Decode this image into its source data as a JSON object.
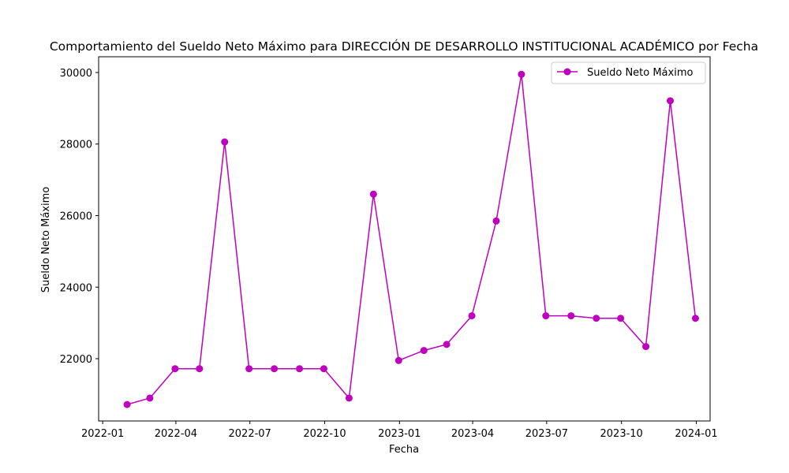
{
  "chart_data": {
    "type": "line",
    "title": "Comportamiento del Sueldo Neto Máximo para DIRECCIÓN DE DESARROLLO INSTITUCIONAL ACADÉMICO por Fecha",
    "xlabel": "Fecha",
    "ylabel": "Sueldo Neto Máximo",
    "x_axis_type": "date",
    "xlim": [
      "2021-12-27",
      "2024-01-18"
    ],
    "ylim": [
      20260,
      30440
    ],
    "xticks": [
      "2022-01-01",
      "2022-04-01",
      "2022-07-01",
      "2022-10-01",
      "2023-01-01",
      "2023-04-01",
      "2023-07-01",
      "2023-10-01",
      "2024-01-01"
    ],
    "xtick_labels": [
      "2022-01",
      "2022-04",
      "2022-07",
      "2022-10",
      "2023-01",
      "2023-04",
      "2023-07",
      "2023-10",
      "2024-01"
    ],
    "yticks": [
      22000,
      24000,
      26000,
      28000,
      30000
    ],
    "ytick_labels": [
      "22000",
      "24000",
      "26000",
      "28000",
      "30000"
    ],
    "grid": false,
    "legend_position": "top-right",
    "series": [
      {
        "name": "Sueldo Neto Máximo",
        "color": "#bf00bf",
        "marker": "circle",
        "x": [
          "2022-01-31",
          "2022-02-28",
          "2022-03-31",
          "2022-04-30",
          "2022-05-31",
          "2022-06-30",
          "2022-07-31",
          "2022-08-31",
          "2022-09-30",
          "2022-10-31",
          "2022-11-30",
          "2022-12-31",
          "2023-01-31",
          "2023-02-28",
          "2023-03-31",
          "2023-04-30",
          "2023-05-31",
          "2023-06-30",
          "2023-07-31",
          "2023-08-31",
          "2023-09-30",
          "2023-10-31",
          "2023-11-30",
          "2023-12-31"
        ],
        "values": [
          20720,
          20900,
          21720,
          21720,
          28060,
          21720,
          21720,
          21720,
          21720,
          20900,
          26600,
          21950,
          22230,
          22400,
          23200,
          25850,
          29950,
          23200,
          23200,
          23130,
          23130,
          22340,
          29210,
          23130
        ]
      }
    ]
  }
}
